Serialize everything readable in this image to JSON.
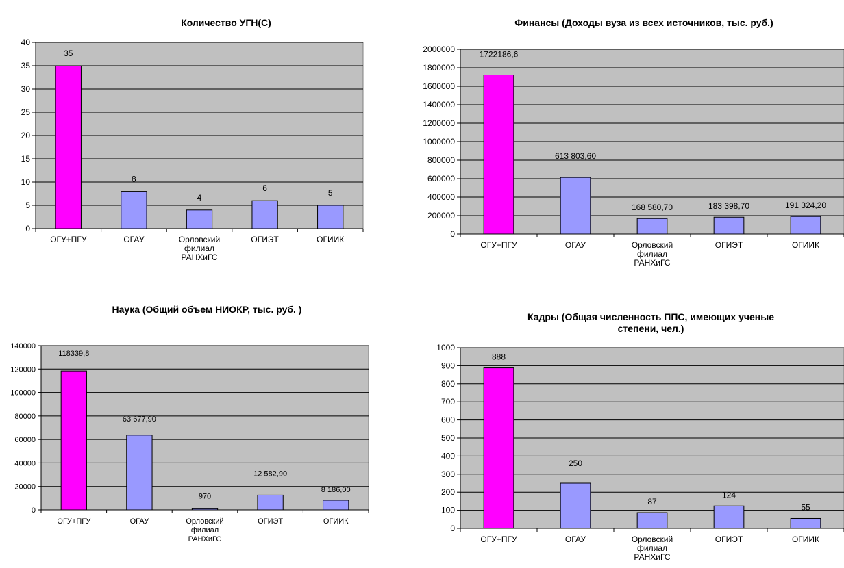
{
  "chart_data": [
    {
      "type": "bar",
      "title": [
        "Количество УГН(С)"
      ],
      "categories": [
        [
          "ОГУ+ПГУ"
        ],
        [
          "ОГАУ"
        ],
        [
          "Орловский",
          "филиал",
          "РАНХиГС"
        ],
        [
          "ОГИЭТ"
        ],
        [
          "ОГИИК"
        ]
      ],
      "values": [
        35,
        8,
        4,
        6,
        5
      ],
      "data_labels": [
        "35",
        "8",
        "4",
        "6",
        "5"
      ],
      "y_ticks": [
        "0",
        "5",
        "10",
        "15",
        "20",
        "25",
        "30",
        "35",
        "40"
      ],
      "ylim": [
        0,
        40
      ],
      "bar_colors": [
        "#ff00ff",
        "#9999ff",
        "#9999ff",
        "#9999ff",
        "#9999ff"
      ],
      "plot_background": "#c0c0c0",
      "grid": true
    },
    {
      "type": "bar",
      "title": [
        "Финансы (Доходы вуза из всех источников, тыс. руб.)"
      ],
      "categories": [
        [
          "ОГУ+ПГУ"
        ],
        [
          "ОГАУ"
        ],
        [
          "Орловский",
          "филиал",
          "РАНХиГС"
        ],
        [
          "ОГИЭТ"
        ],
        [
          "ОГИИК"
        ]
      ],
      "values": [
        1722186.6,
        613803.6,
        168580.7,
        183398.7,
        191324.2
      ],
      "data_labels": [
        "1722186,6",
        "613 803,60",
        "168 580,70",
        "183 398,70",
        "191 324,20"
      ],
      "y_ticks": [
        "0",
        "200000",
        "400000",
        "600000",
        "800000",
        "1000000",
        "1200000",
        "1400000",
        "1600000",
        "1800000",
        "2000000"
      ],
      "ylim": [
        0,
        2000000
      ],
      "bar_colors": [
        "#ff00ff",
        "#9999ff",
        "#9999ff",
        "#9999ff",
        "#9999ff"
      ],
      "plot_background": "#c0c0c0",
      "grid": true
    },
    {
      "type": "bar",
      "title": [
        "Наука (Общий объем НИОКР, тыс. руб. )"
      ],
      "categories": [
        [
          "ОГУ+ПГУ"
        ],
        [
          "ОГАУ"
        ],
        [
          "Орловский",
          "филиал",
          "РАНХиГС"
        ],
        [
          "ОГИЭТ"
        ],
        [
          "ОГИИК"
        ]
      ],
      "values": [
        118339.8,
        63677.9,
        970,
        12582.9,
        8186
      ],
      "data_labels": [
        "118339,8",
        "63 677,90",
        "970",
        "12 582,90",
        "8 186,00"
      ],
      "y_ticks": [
        "0",
        "20000",
        "40000",
        "60000",
        "80000",
        "100000",
        "120000",
        "140000"
      ],
      "ylim": [
        0,
        140000
      ],
      "bar_colors": [
        "#ff00ff",
        "#9999ff",
        "#9999ff",
        "#9999ff",
        "#9999ff"
      ],
      "plot_background": "#c0c0c0",
      "grid": true
    },
    {
      "type": "bar",
      "title": [
        "Кадры (Общая численность ППС, имеющих ученые",
        "степени, чел.)"
      ],
      "categories": [
        [
          "ОГУ+ПГУ"
        ],
        [
          "ОГАУ"
        ],
        [
          "Орловский",
          "филиал",
          "РАНХиГС"
        ],
        [
          "ОГИЭТ"
        ],
        [
          "ОГИИК"
        ]
      ],
      "values": [
        888,
        250,
        87,
        124,
        55
      ],
      "data_labels": [
        "888",
        "250",
        "87",
        "124",
        "55"
      ],
      "y_ticks": [
        "0",
        "100",
        "200",
        "300",
        "400",
        "500",
        "600",
        "700",
        "800",
        "900",
        "1000"
      ],
      "ylim": [
        0,
        1000
      ],
      "bar_colors": [
        "#ff00ff",
        "#9999ff",
        "#9999ff",
        "#9999ff",
        "#9999ff"
      ],
      "plot_background": "#c0c0c0",
      "grid": true
    }
  ]
}
